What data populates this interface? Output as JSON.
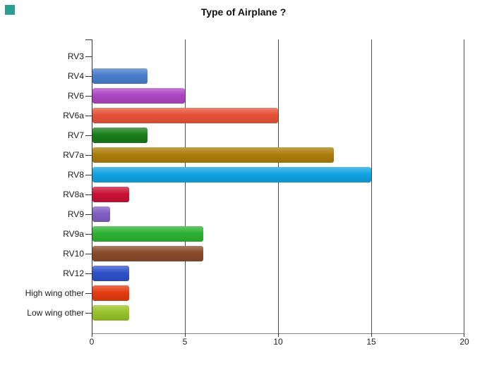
{
  "corner_square_color": "#2b9e8d",
  "axis_color": "#333333",
  "gridline_color": "#4d4d4d",
  "baseline_color": "#8a8a8a",
  "chart_data": {
    "type": "bar",
    "orientation": "horizontal",
    "title": "Type of Airplane ?",
    "categories": [
      "RV3",
      "RV4",
      "RV6",
      "RV6a",
      "RV7",
      "RV7a",
      "RV8",
      "RV8a",
      "RV9",
      "RV9a",
      "RV10",
      "RV12",
      "High wing other",
      "Low wing other"
    ],
    "values": [
      0,
      3,
      5,
      10,
      3,
      13,
      15,
      2,
      1,
      6,
      6,
      2,
      2,
      2
    ],
    "bar_colors": [
      null,
      "#4a7dcc",
      "#ad46c2",
      "#e65238",
      "#187d18",
      "#aa7d0b",
      "#12a3e0",
      "#c91135",
      "#7e5fc0",
      "#2db233",
      "#884a2a",
      "#2f51c9",
      "#e43b0f",
      "#98c22a"
    ],
    "xlabel": "",
    "ylabel": "",
    "xlim": [
      0,
      20
    ],
    "x_ticks": [
      0,
      5,
      10,
      15,
      20
    ],
    "grid": "vertical",
    "legend": "none"
  }
}
